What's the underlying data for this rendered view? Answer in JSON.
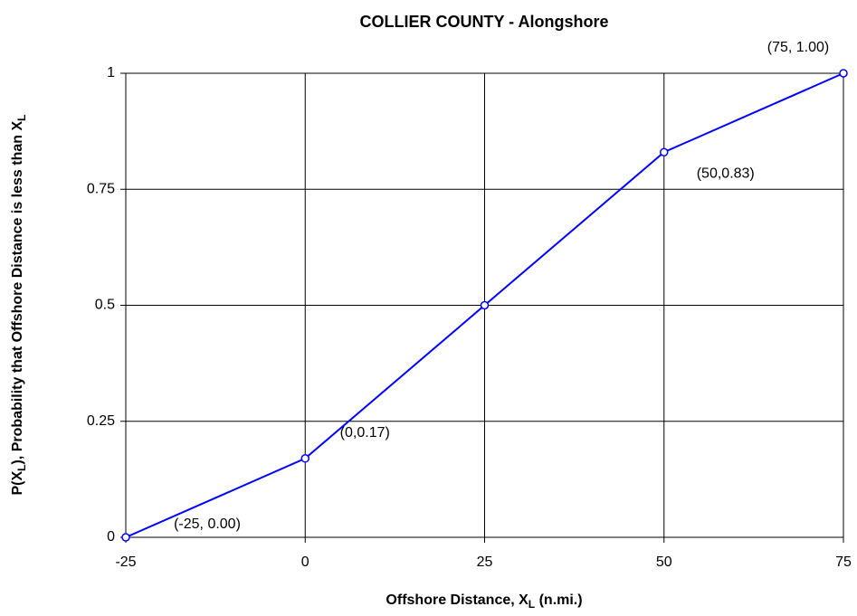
{
  "chart_data": {
    "type": "line",
    "title": "COLLIER COUNTY -  Alongshore",
    "x_label": [
      "Offshore Distance, X",
      "L",
      " (n.mi.)"
    ],
    "y_label": [
      "P(X",
      "L",
      "), Probability that Offshore Distance is less than X",
      "L"
    ],
    "x": [
      -25,
      0,
      25,
      50,
      75
    ],
    "series": [
      {
        "color": "#0000ff",
        "values": [
          0,
          0.17,
          0.5,
          0.83,
          1
        ],
        "value_labels": [
          "(-25, 0.00)",
          "(0,0.17)",
          null,
          "(50,0.83)",
          "(75, 1.00)"
        ]
      }
    ],
    "xlim": [
      -25,
      75
    ],
    "xticks": [
      -25,
      0,
      25,
      50,
      75
    ],
    "ylim": [
      0,
      1
    ],
    "yticks": [
      0,
      0.25,
      0.5,
      0.75,
      1
    ],
    "grid": true
  }
}
